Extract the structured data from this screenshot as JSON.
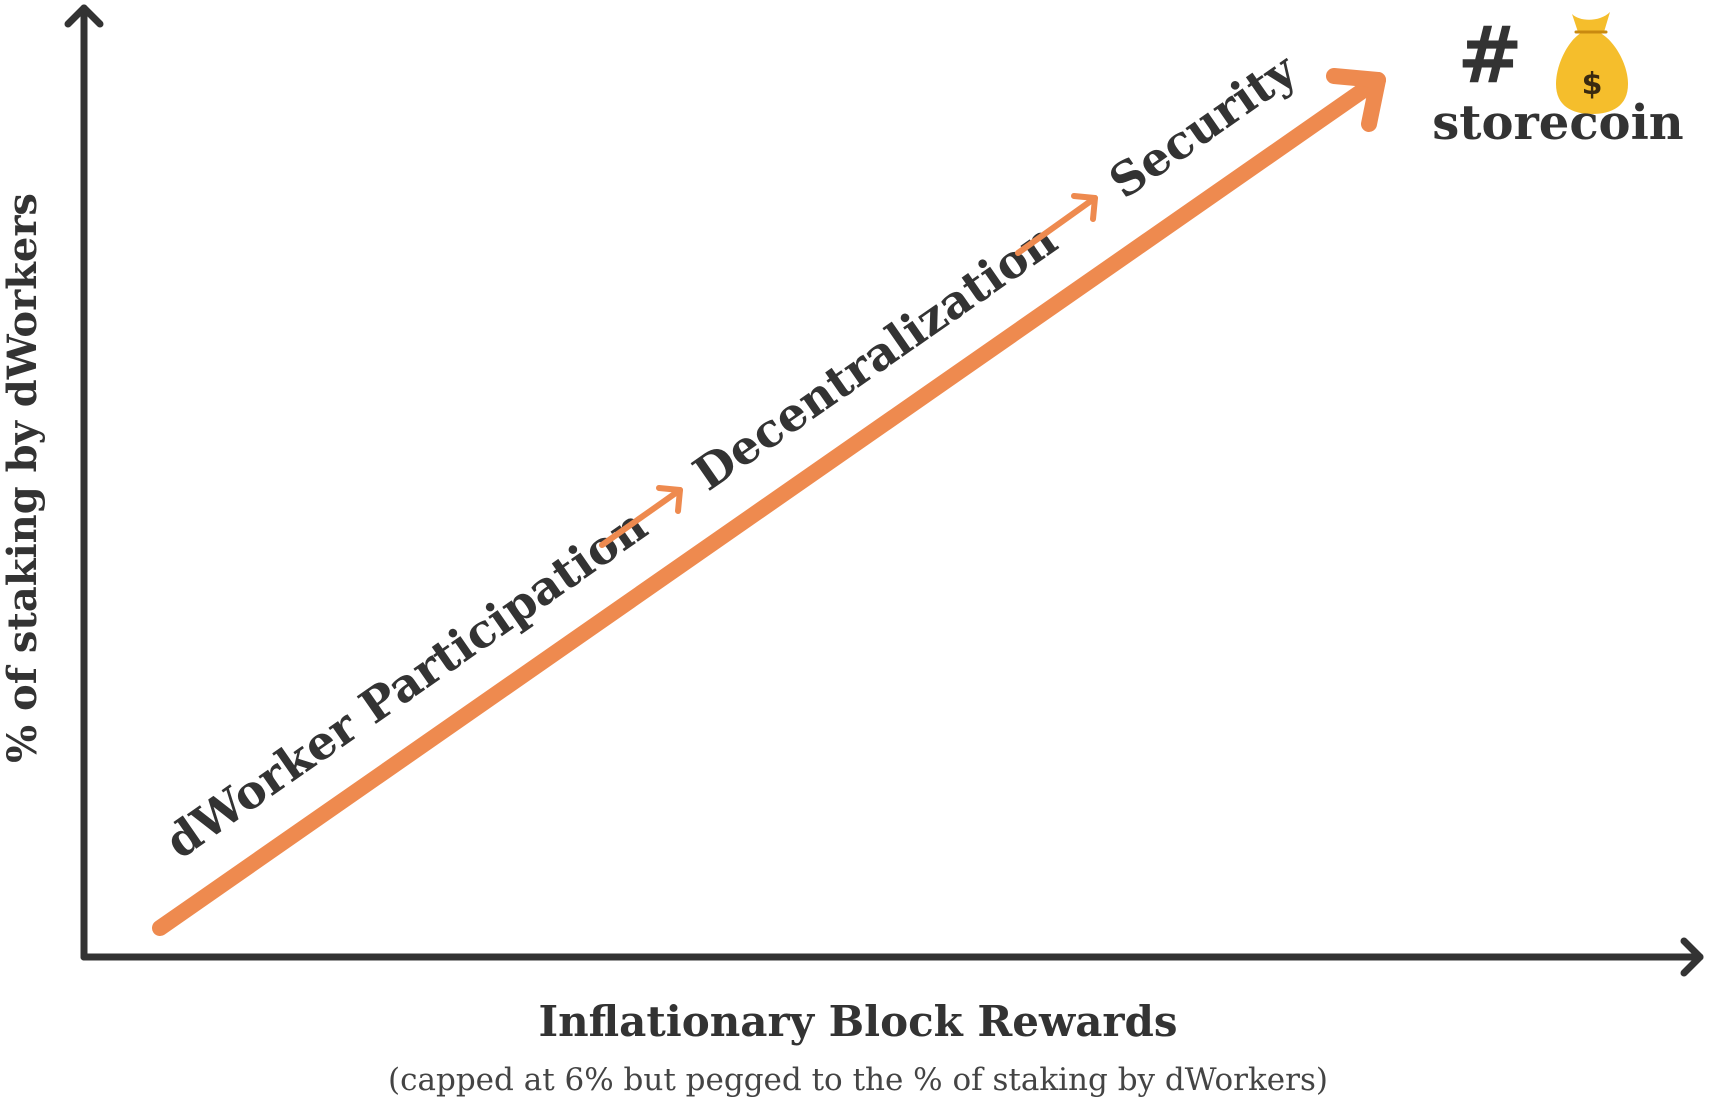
{
  "axes": {
    "y_label": "% of staking by dWorkers",
    "x_title": "Inflationary Block Rewards",
    "x_subtitle": "(capped at 6% but pegged to the % of staking by dWorkers)"
  },
  "steps": [
    {
      "label": "dWorker Participation"
    },
    {
      "label": "Decentralization"
    },
    {
      "label": "Security"
    }
  ],
  "brand": {
    "hash": "#",
    "icon": "money-bag-icon",
    "icon_symbol": "$",
    "name": "storecoin"
  },
  "colors": {
    "axis": "#333333",
    "accent": "#ee8a4f",
    "bag": "#f5be2c",
    "text": "#333333"
  }
}
